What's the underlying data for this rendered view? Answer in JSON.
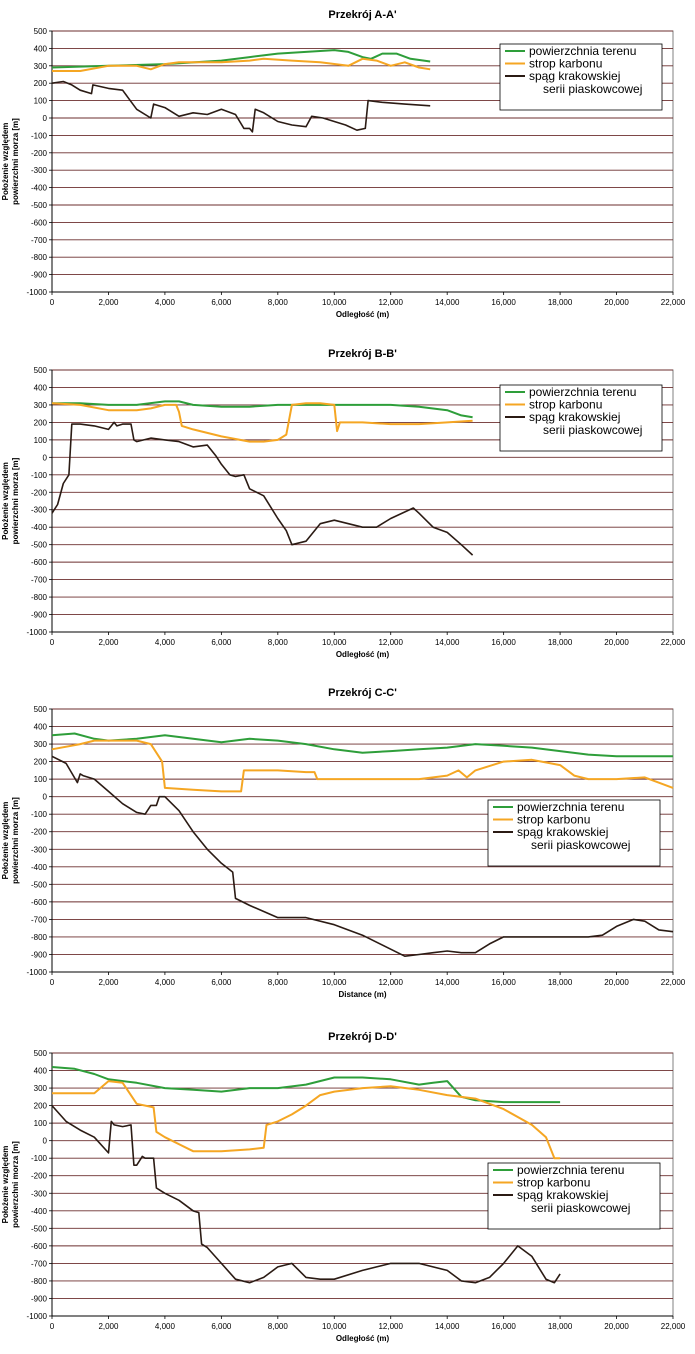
{
  "colors": {
    "terrain": "#2e9e3a",
    "carbon": "#f5a623",
    "sandstone": "#2b1b14",
    "grid": "#6b2e2e"
  },
  "chart_data": [
    {
      "type": "line",
      "title": "Przekrój A-A'",
      "xlabel": "Odległość (m)",
      "ylabel": [
        "Położenie względem",
        "powierzchni morza [m]"
      ],
      "xlim": [
        0,
        22000
      ],
      "ylim": [
        -1000,
        500
      ],
      "xticks": [
        "0",
        "2,000",
        "4,000",
        "6,000",
        "8,000",
        "10,000",
        "12,000",
        "14,000",
        "16,000",
        "18,000",
        "20,000",
        "22,000"
      ],
      "yticks": [
        "-1000",
        "-900",
        "-800",
        "-700",
        "-600",
        "-500",
        "-400",
        "-300",
        "-200",
        "-100",
        "0",
        "100",
        "200",
        "300",
        "400",
        "500"
      ],
      "legend": {
        "position": "top-right",
        "entries": [
          "powierzchnia terenu",
          "strop karbonu",
          [
            "spąg krakowskiej",
            "serii piaskowcowej"
          ]
        ]
      },
      "series": [
        {
          "name": "powierzchnia terenu",
          "color": "terrain",
          "x": [
            0,
            2000,
            4000,
            6000,
            7000,
            8000,
            9000,
            10000,
            10500,
            11000,
            11300,
            11700,
            12200,
            12700,
            13400
          ],
          "y": [
            290,
            300,
            310,
            330,
            350,
            370,
            380,
            390,
            380,
            350,
            340,
            370,
            370,
            340,
            325
          ]
        },
        {
          "name": "strop karbonu",
          "color": "carbon",
          "x": [
            0,
            1000,
            2000,
            3000,
            3500,
            4000,
            4500,
            6000,
            7000,
            7500,
            8500,
            9500,
            10500,
            11000,
            11500,
            12000,
            12500,
            13000,
            13400
          ],
          "y": [
            270,
            270,
            300,
            300,
            280,
            310,
            320,
            320,
            330,
            340,
            330,
            320,
            300,
            340,
            330,
            300,
            320,
            290,
            280
          ]
        },
        {
          "name": "spąg krakowskiej serii piaskowcowej",
          "color": "sandstone",
          "x": [
            0,
            400,
            700,
            1000,
            1400,
            1450,
            2000,
            2500,
            3000,
            3500,
            3600,
            4000,
            4500,
            5000,
            5500,
            6000,
            6500,
            6800,
            7000,
            7100,
            7200,
            7500,
            8000,
            8500,
            9000,
            9200,
            9600,
            10000,
            10400,
            10800,
            11100,
            11200,
            11700,
            12500,
            13400
          ],
          "y": [
            200,
            210,
            190,
            160,
            140,
            190,
            170,
            160,
            50,
            0,
            80,
            60,
            10,
            30,
            20,
            50,
            20,
            -60,
            -60,
            -80,
            50,
            30,
            -20,
            -40,
            -50,
            10,
            0,
            -20,
            -40,
            -70,
            -60,
            100,
            90,
            80,
            70
          ]
        }
      ]
    },
    {
      "type": "line",
      "title": "Przekrój B-B'",
      "xlabel": "Odległość (m)",
      "ylabel": [
        "Położenie względem",
        "powierzchni morza [m]"
      ],
      "xlim": [
        0,
        22000
      ],
      "ylim": [
        -1000,
        500
      ],
      "xticks": [
        "0",
        "2,000",
        "4,000",
        "6,000",
        "8,000",
        "10,000",
        "12,000",
        "14,000",
        "16,000",
        "18,000",
        "20,000",
        "22,000"
      ],
      "yticks": [
        "-1000",
        "-900",
        "-800",
        "-700",
        "-600",
        "-500",
        "-400",
        "-300",
        "-200",
        "-100",
        "0",
        "100",
        "200",
        "300",
        "400",
        "500"
      ],
      "legend": {
        "position": "top-right",
        "entries": [
          "powierzchnia terenu",
          "strop karbonu",
          [
            "spąg krakowskiej",
            "serii piaskowcowej"
          ]
        ]
      },
      "series": [
        {
          "name": "powierzchnia terenu",
          "color": "terrain",
          "x": [
            0,
            1000,
            2000,
            3000,
            4000,
            4500,
            5000,
            6000,
            7000,
            8000,
            9000,
            10000,
            11000,
            12000,
            13000,
            14000,
            14500,
            14900
          ],
          "y": [
            310,
            310,
            300,
            300,
            320,
            320,
            300,
            290,
            290,
            300,
            300,
            300,
            300,
            300,
            290,
            270,
            240,
            230
          ]
        },
        {
          "name": "strop karbonu",
          "color": "carbon",
          "x": [
            0,
            1000,
            2000,
            3000,
            3500,
            4000,
            4400,
            4500,
            4600,
            5000,
            6000,
            7000,
            7500,
            8000,
            8300,
            8500,
            9000,
            9500,
            10000,
            10100,
            10200,
            10500,
            11000,
            12000,
            13000,
            14000,
            14900
          ],
          "y": [
            310,
            300,
            270,
            270,
            280,
            300,
            300,
            260,
            180,
            160,
            120,
            90,
            90,
            100,
            130,
            300,
            310,
            310,
            300,
            150,
            200,
            200,
            200,
            190,
            190,
            200,
            210
          ]
        },
        {
          "name": "spąg krakowskiej serii piaskowcowej",
          "color": "sandstone",
          "x": [
            0,
            200,
            400,
            600,
            700,
            800,
            1000,
            1500,
            2000,
            2200,
            2300,
            2500,
            2800,
            2900,
            3000,
            3500,
            4000,
            4500,
            5000,
            5500,
            5800,
            6000,
            6300,
            6500,
            6800,
            7000,
            7500,
            8000,
            8300,
            8500,
            9000,
            9500,
            10000,
            10500,
            11000,
            11500,
            12000,
            12800,
            13000,
            13500,
            14000,
            14500,
            14900
          ],
          "y": [
            -320,
            -270,
            -150,
            -100,
            190,
            190,
            190,
            180,
            160,
            200,
            180,
            190,
            190,
            100,
            90,
            110,
            100,
            90,
            60,
            70,
            10,
            -40,
            -100,
            -110,
            -100,
            -180,
            -220,
            -350,
            -420,
            -500,
            -480,
            -380,
            -360,
            -380,
            -400,
            -400,
            -350,
            -290,
            -320,
            -400,
            -430,
            -500,
            -560
          ]
        }
      ]
    },
    {
      "type": "line",
      "title": "Przekrój C-C'",
      "xlabel": "Distance (m)",
      "ylabel": [
        "Położenie względem",
        "powierzchni morza [m]"
      ],
      "xlim": [
        0,
        22000
      ],
      "ylim": [
        -1000,
        500
      ],
      "xticks": [
        "0",
        "2,000",
        "4,000",
        "6,000",
        "8,000",
        "10,000",
        "12,000",
        "14,000",
        "16,000",
        "18,000",
        "20,000",
        "22,000"
      ],
      "yticks": [
        "-1000",
        "-900",
        "-800",
        "-700",
        "-600",
        "-500",
        "-400",
        "-300",
        "-200",
        "-100",
        "0",
        "100",
        "200",
        "300",
        "400",
        "500"
      ],
      "legend": {
        "position": "middle-right",
        "entries": [
          "powierzchnia terenu",
          "strop karbonu",
          [
            "spąg krakowskiej",
            "serii piaskowcowej"
          ]
        ]
      },
      "series": [
        {
          "name": "powierzchnia terenu",
          "color": "terrain",
          "x": [
            0,
            800,
            1500,
            2000,
            3000,
            4000,
            5000,
            6000,
            7000,
            8000,
            9000,
            10000,
            11000,
            12000,
            13000,
            14000,
            15000,
            16000,
            17000,
            18000,
            19000,
            20000,
            21000,
            22000
          ],
          "y": [
            350,
            360,
            330,
            320,
            330,
            350,
            330,
            310,
            330,
            320,
            300,
            270,
            250,
            260,
            270,
            280,
            300,
            290,
            280,
            260,
            240,
            230,
            230,
            230
          ]
        },
        {
          "name": "strop karbonu",
          "color": "carbon",
          "x": [
            0,
            1000,
            1500,
            2000,
            3000,
            3500,
            3900,
            4000,
            5000,
            6000,
            6700,
            6800,
            8000,
            9000,
            9300,
            9400,
            10000,
            11000,
            12000,
            13000,
            14000,
            14400,
            14700,
            15000,
            16000,
            17000,
            18000,
            18500,
            19000,
            20000,
            21000,
            22000
          ],
          "y": [
            270,
            300,
            320,
            320,
            320,
            300,
            200,
            50,
            40,
            30,
            30,
            150,
            150,
            140,
            140,
            100,
            100,
            100,
            100,
            100,
            120,
            150,
            110,
            150,
            200,
            210,
            180,
            120,
            100,
            100,
            110,
            50
          ]
        },
        {
          "name": "spąg krakowskiej serii piaskowcowej",
          "color": "sandstone",
          "x": [
            0,
            500,
            900,
            1000,
            1100,
            1500,
            2000,
            2500,
            3000,
            3300,
            3500,
            3700,
            3800,
            4000,
            4500,
            5000,
            5500,
            6000,
            6400,
            6500,
            7000,
            8000,
            9000,
            10000,
            11000,
            12000,
            12500,
            13000,
            13500,
            14000,
            14500,
            15000,
            15500,
            16000,
            17000,
            18000,
            19000,
            19500,
            20000,
            20600,
            21000,
            21500,
            22000
          ],
          "y": [
            230,
            190,
            80,
            130,
            120,
            100,
            30,
            -40,
            -90,
            -100,
            -50,
            -50,
            0,
            0,
            -80,
            -200,
            -300,
            -380,
            -430,
            -580,
            -620,
            -690,
            -690,
            -730,
            -790,
            -870,
            -910,
            -900,
            -890,
            -880,
            -890,
            -890,
            -840,
            -800,
            -800,
            -800,
            -800,
            -790,
            -740,
            -700,
            -710,
            -760,
            -770
          ]
        }
      ]
    },
    {
      "type": "line",
      "title": "Przekrój D-D'",
      "xlabel": "Odległość (m)",
      "ylabel": [
        "Położenie względem",
        "powierzchni morza [m]"
      ],
      "xlim": [
        0,
        22000
      ],
      "ylim": [
        -1000,
        500
      ],
      "xticks": [
        "0",
        "2,000",
        "4,000",
        "6,000",
        "8,000",
        "10,000",
        "12,000",
        "14,000",
        "16,000",
        "18,000",
        "20,000",
        "22,000"
      ],
      "yticks": [
        "-1000",
        "-900",
        "-800",
        "-700",
        "-600",
        "-500",
        "-400",
        "-300",
        "-200",
        "-100",
        "0",
        "100",
        "200",
        "300",
        "400",
        "500"
      ],
      "legend": {
        "position": "middle-right",
        "entries": [
          "powierzchnia terenu",
          "strop karbonu",
          [
            "spąg krakowskiej",
            "serii piaskowcowej"
          ]
        ]
      },
      "series": [
        {
          "name": "powierzchnia terenu",
          "color": "terrain",
          "x": [
            0,
            800,
            1500,
            2000,
            3000,
            4000,
            5000,
            6000,
            7000,
            8000,
            9000,
            10000,
            11000,
            12000,
            13000,
            13500,
            14000,
            14500,
            15000,
            16000,
            17000,
            18000
          ],
          "y": [
            420,
            410,
            380,
            350,
            330,
            300,
            290,
            280,
            300,
            300,
            320,
            360,
            360,
            350,
            320,
            330,
            340,
            250,
            230,
            220,
            220,
            220
          ]
        },
        {
          "name": "strop karbonu",
          "color": "carbon",
          "x": [
            0,
            1000,
            1500,
            2000,
            2500,
            3000,
            3600,
            3700,
            4000,
            5000,
            6000,
            7000,
            7500,
            7600,
            8000,
            8500,
            9000,
            9500,
            10000,
            11000,
            12000,
            13000,
            14000,
            15000,
            16000,
            17000,
            17500,
            17800,
            18000
          ],
          "y": [
            270,
            270,
            270,
            340,
            330,
            210,
            190,
            50,
            20,
            -60,
            -60,
            -50,
            -40,
            90,
            110,
            150,
            200,
            260,
            280,
            300,
            310,
            290,
            260,
            240,
            180,
            90,
            20,
            -100,
            -100
          ]
        },
        {
          "name": "spąg krakowskiej serii piaskowcowej",
          "color": "sandstone",
          "x": [
            0,
            500,
            1000,
            1500,
            2000,
            2100,
            2200,
            2500,
            2800,
            2900,
            3000,
            3200,
            3300,
            3400,
            3600,
            3700,
            3800,
            4000,
            4500,
            5000,
            5200,
            5300,
            5500,
            6000,
            6500,
            7000,
            7500,
            8000,
            8500,
            9000,
            9500,
            10000,
            11000,
            11500,
            12000,
            13000,
            14000,
            14500,
            15000,
            15500,
            16000,
            16500,
            17000,
            17500,
            17800,
            18000
          ],
          "y": [
            200,
            110,
            60,
            20,
            -70,
            110,
            90,
            80,
            90,
            -140,
            -140,
            -90,
            -100,
            -100,
            -100,
            -270,
            -280,
            -300,
            -340,
            -400,
            -410,
            -590,
            -610,
            -700,
            -790,
            -810,
            -780,
            -720,
            -700,
            -780,
            -790,
            -790,
            -740,
            -720,
            -700,
            -700,
            -740,
            -800,
            -810,
            -780,
            -700,
            -600,
            -660,
            -790,
            -810,
            -760
          ]
        }
      ]
    }
  ]
}
